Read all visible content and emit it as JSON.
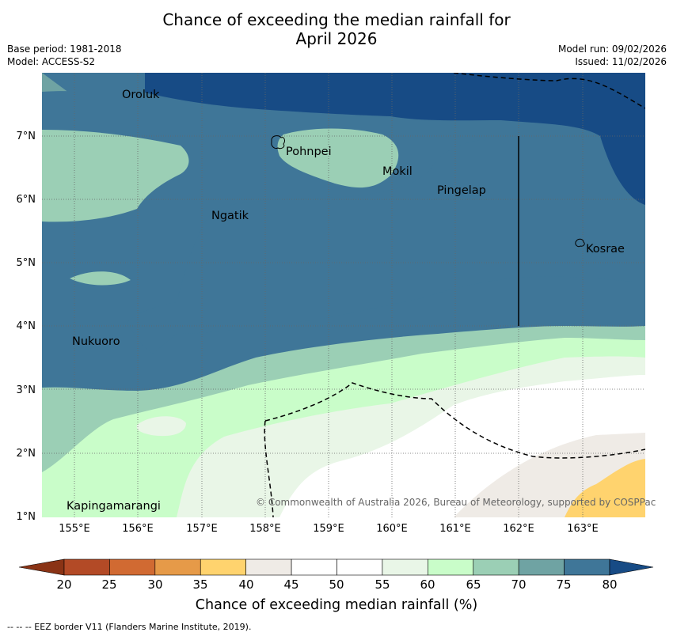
{
  "title_line1": "Chance of exceeding the median rainfall for",
  "title_line2": "April 2026",
  "base_period": "Base period: 1981-2018",
  "model": "Model: ACCESS-S2",
  "model_run": "Model run: 09/02/2026",
  "issued": "Issued: 11/02/2026",
  "lat_labels": [
    "7°N",
    "6°N",
    "5°N",
    "4°N",
    "3°N",
    "2°N",
    "1°N"
  ],
  "lon_labels": [
    "155°E",
    "156°E",
    "157°E",
    "158°E",
    "159°E",
    "160°E",
    "161°E",
    "162°E",
    "163°E"
  ],
  "places": [
    "Oroluk",
    "Pohnpei",
    "Mokil",
    "Pingelap",
    "Ngatik",
    "Kosrae",
    "Nukuoro",
    "Kapingamarangi"
  ],
  "copyright": "© Commonwealth of Australia 2026, Bureau of Meteorology, supported by COSPPac",
  "colorbar": {
    "ticks": [
      "20",
      "25",
      "30",
      "35",
      "40",
      "45",
      "50",
      "55",
      "60",
      "65",
      "70",
      "75",
      "80"
    ],
    "colors": [
      "#8a3315",
      "#b34a26",
      "#d16a32",
      "#e69a48",
      "#ffd36e",
      "#efebe6",
      "#ffffff",
      "#ffffff",
      "#e9f6e7",
      "#c9fdc9",
      "#9bcfb5",
      "#6fa3a3",
      "#3f7698",
      "#174b85"
    ],
    "label": "Chance of exceeding median rainfall (%)"
  },
  "footnote": "--  --  -- EEZ border V11 (Flanders Marine Institute, 2019)."
}
